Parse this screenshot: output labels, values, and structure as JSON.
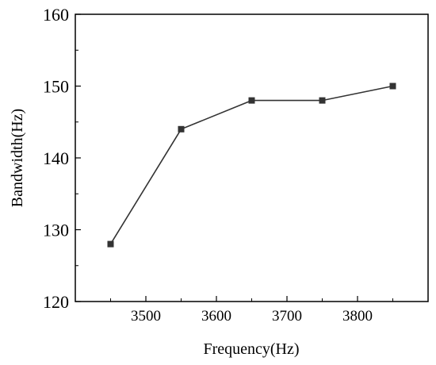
{
  "chart_data": {
    "type": "line",
    "title": "",
    "xlabel": "Frequency(Hz)",
    "ylabel": "Bandwidth(Hz)",
    "x": [
      3450,
      3550,
      3650,
      3750,
      3850
    ],
    "series": [
      {
        "values": [
          128,
          144,
          148,
          148,
          150
        ],
        "marker": "square",
        "color": "#333333"
      }
    ],
    "xlim": [
      3400,
      3900
    ],
    "ylim": [
      120,
      160
    ],
    "xticks": [
      3500,
      3600,
      3700,
      3800
    ],
    "yticks": [
      120,
      130,
      140,
      150,
      160
    ],
    "grid": false,
    "legend": "none"
  }
}
